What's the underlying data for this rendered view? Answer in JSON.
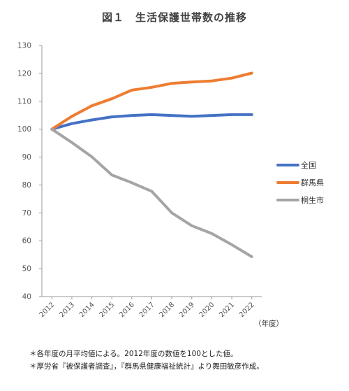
{
  "chart_data": {
    "type": "line",
    "title": "図１　生活保護世帯数の推移",
    "x": [
      "2012",
      "2013",
      "2014",
      "2015",
      "2016",
      "2017",
      "2018",
      "2019",
      "2020",
      "2021",
      "2022"
    ],
    "x_unit_label": "（年度）",
    "ylim": [
      40,
      130
    ],
    "yticks": [
      40,
      50,
      60,
      70,
      80,
      90,
      100,
      110,
      120,
      130
    ],
    "grid": false,
    "legend_position": "right",
    "series": [
      {
        "name": "全国",
        "color": "#4472C4",
        "values": [
          100,
          102.0,
          103.3,
          104.4,
          104.9,
          105.2,
          104.9,
          104.6,
          104.9,
          105.2,
          105.2
        ]
      },
      {
        "name": "群馬県",
        "color": "#ED7D31",
        "values": [
          100,
          104.6,
          108.4,
          110.9,
          114.0,
          115.0,
          116.4,
          116.9,
          117.3,
          118.3,
          120.1
        ]
      },
      {
        "name": "桐生市",
        "color": "#A5A5A5",
        "values": [
          100,
          95.2,
          90.1,
          83.6,
          80.8,
          77.7,
          70.0,
          65.4,
          62.6,
          58.6,
          54.3
        ]
      }
    ]
  },
  "notes": [
    "＊各年度の月平均値による。2012年度の数値を100とした値。",
    "＊厚労省『被保護者調査』，『群馬県健康福祉統計』より舞田敏彦作成。"
  ]
}
